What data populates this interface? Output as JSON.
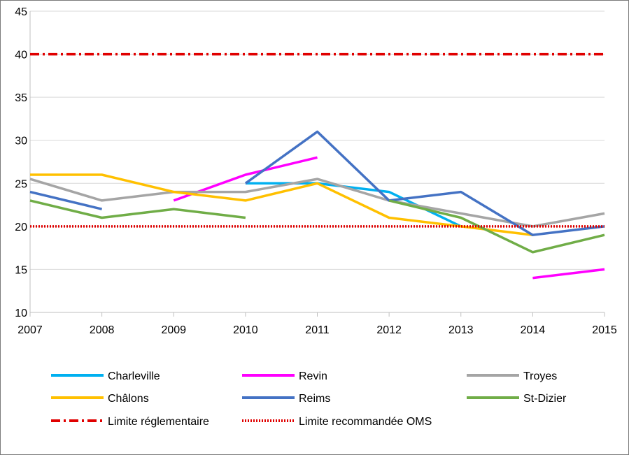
{
  "chart_data": {
    "type": "line",
    "title": "",
    "xlabel": "",
    "ylabel": "",
    "x": [
      2007,
      2008,
      2009,
      2010,
      2011,
      2012,
      2013,
      2014,
      2015
    ],
    "ylim": [
      10,
      45
    ],
    "yticks": [
      10,
      15,
      20,
      25,
      30,
      35,
      40,
      45
    ],
    "grid": "horizontal",
    "legend_position": "bottom",
    "series": [
      {
        "name": "Charleville",
        "color": "#00b0f0",
        "dash": "solid",
        "values": [
          null,
          null,
          null,
          25,
          25,
          24,
          20,
          null,
          null
        ]
      },
      {
        "name": "Revin",
        "color": "#ff00ff",
        "dash": "solid",
        "values": [
          null,
          null,
          23,
          26,
          28,
          null,
          null,
          14,
          15
        ]
      },
      {
        "name": "Troyes",
        "color": "#a5a5a5",
        "dash": "solid",
        "values": [
          25.5,
          23,
          24,
          24,
          25.5,
          23,
          21.5,
          20,
          21.5
        ]
      },
      {
        "name": "Châlons",
        "color": "#ffc000",
        "dash": "solid",
        "values": [
          26,
          26,
          24,
          23,
          25,
          21,
          20,
          19,
          null
        ]
      },
      {
        "name": "Reims",
        "color": "#4472c4",
        "dash": "solid",
        "values": [
          24,
          22,
          null,
          25,
          31,
          23,
          24,
          19,
          20
        ]
      },
      {
        "name": "St-Dizier",
        "color": "#70ad47",
        "dash": "solid",
        "values": [
          23,
          21,
          22,
          21,
          null,
          23,
          21,
          17,
          19
        ]
      },
      {
        "name": "Limite réglementaire",
        "color": "#e00000",
        "dash": "dashdot",
        "values": [
          40,
          40,
          40,
          40,
          40,
          40,
          40,
          40,
          40
        ]
      },
      {
        "name": "Limite recommandée OMS",
        "color": "#e00000",
        "dash": "dotted",
        "values": [
          20,
          20,
          20,
          20,
          20,
          20,
          20,
          20,
          20
        ]
      }
    ]
  }
}
